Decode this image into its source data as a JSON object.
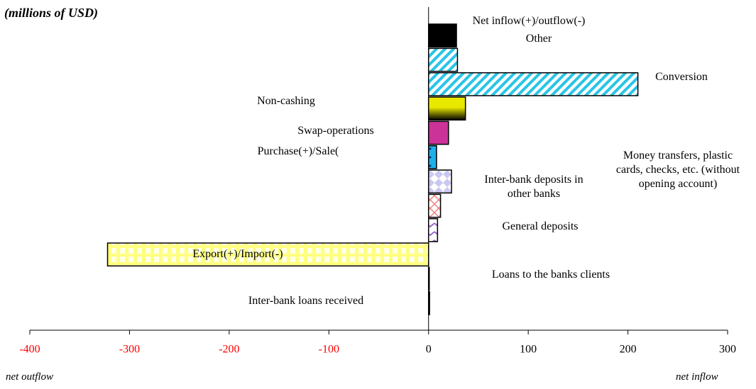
{
  "chart_data": {
    "type": "barh",
    "unit_label": "(millions of USD)",
    "categories": [
      "Net inflow(+)/outflow(-)",
      "Other",
      "Conversion",
      "Non-cashing",
      "Swap-operations",
      "Purchase(+)/Sale(",
      "Inter-bank deposits in other banks",
      "Money transfers, plastic cards, checks, etc. (without opening account)",
      "General deposits",
      "Export(+)/Import(-)",
      "Loans to the banks clients",
      "Inter-bank loans received"
    ],
    "values": [
      28,
      29,
      210,
      37,
      20,
      8,
      23,
      12,
      9,
      -322,
      0,
      1
    ],
    "colors": [
      "#000000",
      "#29c5e6",
      "#29c5e6",
      "#e8e800",
      "#cc3399",
      "#1fb0e8",
      "#c8c8f0",
      "#f08080",
      "#9966cc",
      "#ffff80",
      "#000000",
      "#000000"
    ],
    "xlim": [
      -400,
      300
    ],
    "xticks": [
      -400,
      -300,
      -200,
      -100,
      0,
      100,
      200,
      300
    ],
    "negative_tick_color": "#ff0000",
    "x_left_label": "net outflow",
    "x_right_label": "net inflow"
  }
}
